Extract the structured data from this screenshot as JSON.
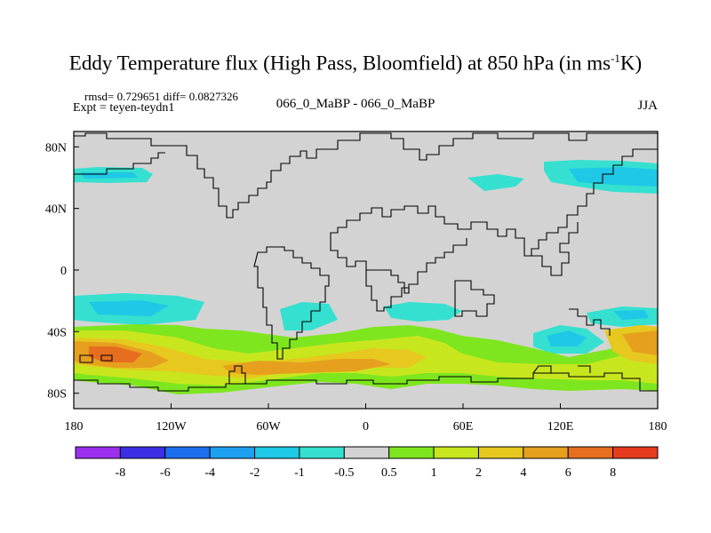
{
  "title": {
    "main": "Eddy Temperature flux (High Pass, Bloomfield) at 850 hPa (in ms",
    "superscript": "-1",
    "suffix": "K)"
  },
  "subtitle": {
    "stats": "rmsd= 0.729651 diff= 0.0827326",
    "expt": "Expt = teyen-teydn1",
    "center": "066_0_MaBP - 066_0_MaBP",
    "season": "JJA"
  },
  "axes": {
    "y_ticks": [
      {
        "value": 80,
        "label": "80N"
      },
      {
        "value": 40,
        "label": "40N"
      },
      {
        "value": 0,
        "label": "0"
      },
      {
        "value": -40,
        "label": "40S"
      },
      {
        "value": -80,
        "label": "80S"
      }
    ],
    "x_ticks": [
      {
        "value": -180,
        "label": "180"
      },
      {
        "value": -120,
        "label": "120W"
      },
      {
        "value": -60,
        "label": "60W"
      },
      {
        "value": 0,
        "label": "0"
      },
      {
        "value": 60,
        "label": "60E"
      },
      {
        "value": 120,
        "label": "120E"
      },
      {
        "value": 180,
        "label": "180"
      }
    ],
    "lon_range": [
      -180,
      180
    ],
    "lat_range": [
      -90,
      90
    ]
  },
  "colorbar": {
    "colors": [
      "#9b30f0",
      "#3c2fe6",
      "#1e6ff0",
      "#1ea0f0",
      "#1ec8e6",
      "#35e0d0",
      "#d3d3d3",
      "#7ee61e",
      "#c8e61e",
      "#e6c81e",
      "#e6a01e",
      "#e66e1e",
      "#e63c1e"
    ],
    "labels": [
      "-8",
      "-6",
      "-4",
      "-2",
      "-1",
      "-0.5",
      "0.5",
      "1",
      "2",
      "4",
      "6",
      "8"
    ]
  },
  "colors": {
    "land_background": "#d3d3d3",
    "coastline": "#000000"
  }
}
